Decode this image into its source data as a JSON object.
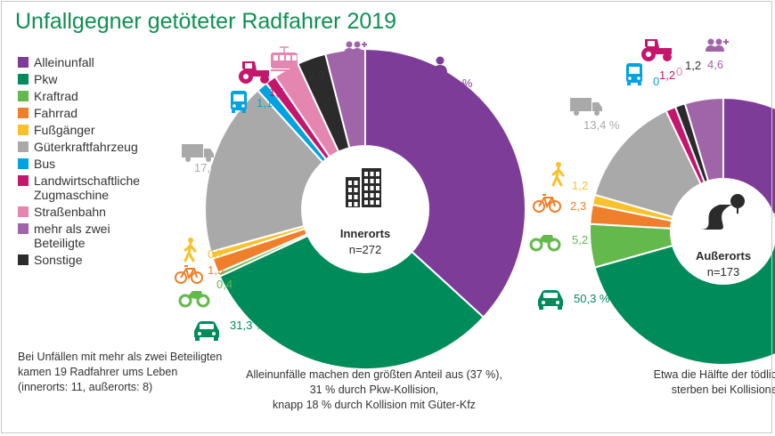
{
  "title": "Unfallgegner getöteter Radfahrer 2019",
  "colors": {
    "Alleinunfall": "#7d3c98",
    "Pkw": "#008c5a",
    "Kraftrad": "#63b94b",
    "Fahrrad": "#f07f2b",
    "Fußgänger": "#f9c12d",
    "Güterkraftfahrzeug": "#a9a9a9",
    "Bus": "#00a3e0",
    "Landwirtschaftliche Zugmaschine": "#c5166e",
    "Straßenbahn": "#e586b1",
    "mehr als zwei Beteiligte": "#a064a8",
    "Sonstige": "#2b2b2b"
  },
  "legend": [
    {
      "key": "Alleinunfall",
      "label": "Alleinunfall"
    },
    {
      "key": "Pkw",
      "label": "Pkw"
    },
    {
      "key": "Kraftrad",
      "label": "Kraftrad"
    },
    {
      "key": "Fahrrad",
      "label": "Fahrrad"
    },
    {
      "key": "Fußgänger",
      "label": "Fußgänger"
    },
    {
      "key": "Güterkraftfahrzeug",
      "label": "Güterkraftfahrzeug"
    },
    {
      "key": "Bus",
      "label": "Bus"
    },
    {
      "key": "Landwirtschaftliche Zugmaschine",
      "label": "Landwirtschaftliche\nZugmaschine"
    },
    {
      "key": "Straßenbahn",
      "label": "Straßenbahn"
    },
    {
      "key": "mehr als zwei Beteiligte",
      "label": "mehr als zwei\nBeteiligte"
    },
    {
      "key": "Sonstige",
      "label": "Sonstige"
    }
  ],
  "note": "Bei Unfällen mit mehr als zwei Beteiligten\nkamen 19 Radfahrer ums Leben\n(innerorts: 11, außerorts: 8)",
  "chart_data": [
    {
      "type": "pie",
      "variant": "donut",
      "center_label": "Innerorts",
      "center_count": "n=272",
      "center_icon": "buildings-icon",
      "slices": [
        {
          "name": "Alleinunfall",
          "value": 36.8,
          "label": "36,8 %",
          "icon": "person-icon"
        },
        {
          "name": "Pkw",
          "value": 31.3,
          "label": "31,3 %",
          "icon": "car-icon"
        },
        {
          "name": "Kraftrad",
          "value": 0.4,
          "label": "0,4",
          "icon": "motorcycle-icon"
        },
        {
          "name": "Fahrrad",
          "value": 1.5,
          "label": "1,5",
          "icon": "bicycle-icon"
        },
        {
          "name": "Fußgänger",
          "value": 0.7,
          "label": "0,7",
          "icon": "pedestrian-icon"
        },
        {
          "name": "Güterkraftfahrzeug",
          "value": 17.6,
          "label": "17,6 %",
          "icon": "truck-icon"
        },
        {
          "name": "Bus",
          "value": 1.1,
          "label": "1,1",
          "icon": "bus-icon"
        },
        {
          "name": "Landwirtschaftliche Zugmaschine",
          "value": 1.1,
          "label": "1,1",
          "icon": "tractor-icon"
        },
        {
          "name": "Straßenbahn",
          "value": 2.6,
          "label": "2,6",
          "icon": "tram-icon"
        },
        {
          "name": "Sonstige",
          "value": 2.9,
          "label": "2,9",
          "icon": ""
        },
        {
          "name": "mehr als zwei Beteiligte",
          "value": 4.0,
          "label": "4,0",
          "icon": "group-icon"
        }
      ],
      "caption": "Alleinunfälle machen den größten Anteil aus (37 %),\n31 % durch Pkw-Kollision,\nknapp 18 % durch Kollision mit Güter-Kfz"
    },
    {
      "type": "pie",
      "variant": "donut",
      "center_label": "Außerorts",
      "center_count": "n=173",
      "center_icon": "road-icon",
      "slices": [
        {
          "name": "Alleinunfall",
          "value": 19.7,
          "label": "",
          "icon": ""
        },
        {
          "name": "Pkw",
          "value": 50.3,
          "label": "50,3 %",
          "icon": "car-icon"
        },
        {
          "name": "Kraftrad",
          "value": 5.2,
          "label": "5,2",
          "icon": "motorcycle-icon"
        },
        {
          "name": "Fahrrad",
          "value": 2.3,
          "label": "2,3",
          "icon": "bicycle-icon"
        },
        {
          "name": "Fußgänger",
          "value": 1.2,
          "label": "1,2",
          "icon": "pedestrian-icon"
        },
        {
          "name": "Güterkraftfahrzeug",
          "value": 13.4,
          "label": "13,4 %",
          "icon": "truck-icon"
        },
        {
          "name": "Bus",
          "value": 0,
          "label": "0",
          "icon": "bus-icon"
        },
        {
          "name": "Landwirtschaftliche Zugmaschine",
          "value": 1.2,
          "label": "1,2",
          "icon": "tractor-icon"
        },
        {
          "name": "Straßenbahn",
          "value": 0,
          "label": "0",
          "icon": "tram-icon"
        },
        {
          "name": "Sonstige",
          "value": 1.2,
          "label": "1,2",
          "icon": ""
        },
        {
          "name": "mehr als zwei Beteiligte",
          "value": 4.6,
          "label": "4,6",
          "icon": "group-icon"
        }
      ],
      "caption": "Etwa die Hälfte der tödlich verlet:\nsterben bei Kollisionen mi"
    }
  ]
}
